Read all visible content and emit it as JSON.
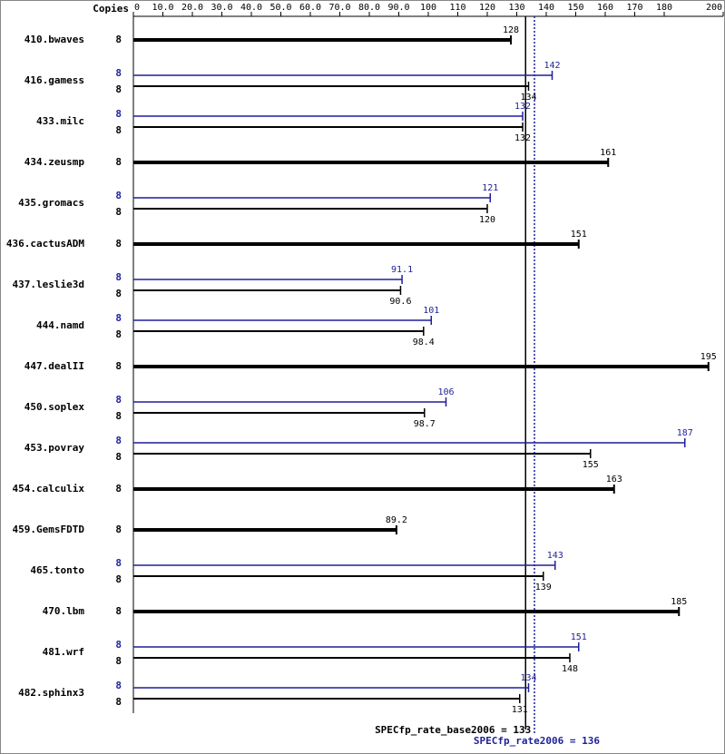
{
  "chart_data": {
    "type": "spec-bar",
    "copies_label": "Copies",
    "categories": [
      "410.bwaves",
      "416.gamess",
      "433.milc",
      "434.zeusmp",
      "435.gromacs",
      "436.cactusADM",
      "437.leslie3d",
      "444.namd",
      "447.dealII",
      "450.soplex",
      "453.povray",
      "454.calculix",
      "459.GemsFDTD",
      "465.tonto",
      "470.lbm",
      "481.wrf",
      "482.sphinx3"
    ],
    "series": [
      {
        "name": "base",
        "color": "#000000",
        "copies": [
          8,
          8,
          8,
          8,
          8,
          8,
          8,
          8,
          8,
          8,
          8,
          8,
          8,
          8,
          8,
          8,
          8
        ],
        "values": [
          128,
          134,
          132,
          161,
          120,
          151,
          90.6,
          98.4,
          195,
          98.7,
          155,
          163,
          89.2,
          139,
          185,
          148,
          131
        ]
      },
      {
        "name": "peak",
        "color": "#1f1f9a",
        "copies": [
          null,
          8,
          8,
          null,
          8,
          null,
          8,
          8,
          null,
          8,
          8,
          null,
          null,
          8,
          null,
          8,
          8
        ],
        "values": [
          null,
          142,
          132,
          null,
          121,
          null,
          91.1,
          101,
          null,
          106,
          187,
          null,
          null,
          143,
          null,
          151,
          134
        ]
      }
    ],
    "xlim": [
      0,
      200
    ],
    "xticks": [
      0,
      {
        "value": 10,
        "label": "10.0"
      },
      {
        "value": 20,
        "label": "20.0"
      },
      {
        "value": 30,
        "label": "30.0"
      },
      {
        "value": 40,
        "label": "40.0"
      },
      {
        "value": 50,
        "label": "50.0"
      },
      {
        "value": 60,
        "label": "60.0"
      },
      {
        "value": 70,
        "label": "70.0"
      },
      {
        "value": 80,
        "label": "80.0"
      },
      {
        "value": 90,
        "label": "90.0"
      },
      100,
      110,
      120,
      130,
      140,
      150,
      160,
      170,
      180,
      200
    ],
    "reference_lines": [
      {
        "value": 133,
        "label": "SPECfp_rate_base2006 = 133",
        "color": "#000000",
        "style": "solid"
      },
      {
        "value": 136,
        "label": "SPECfp_rate2006 = 136",
        "color": "#1f1f9a",
        "style": "dotted"
      }
    ]
  }
}
